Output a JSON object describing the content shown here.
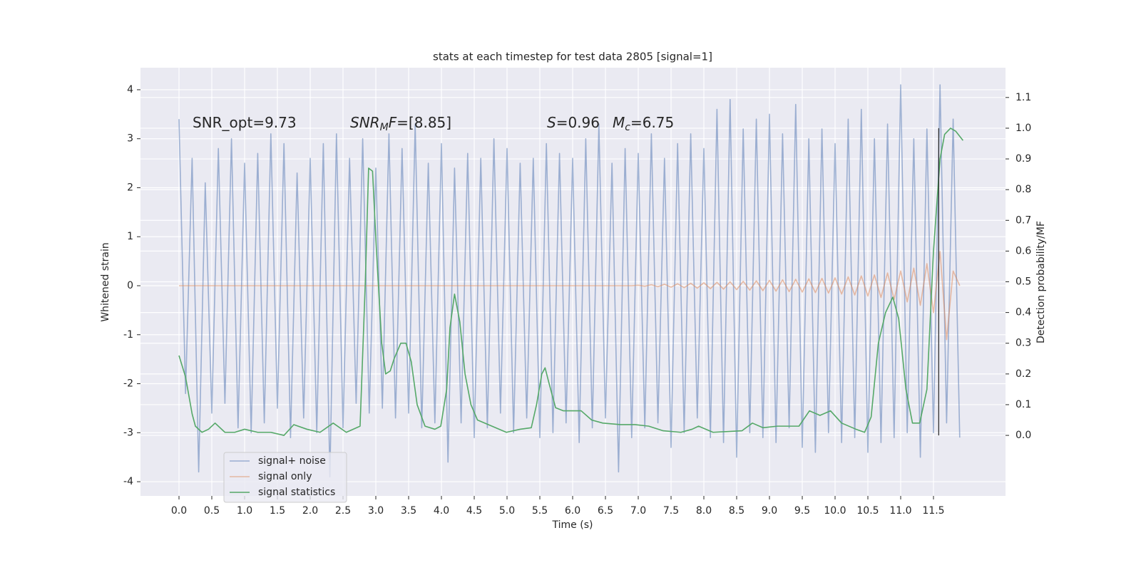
{
  "chart_data": {
    "type": "line",
    "title": "stats at each timestep for test data 2805 [signal=1]",
    "x_label": "Time (s)",
    "y_label": "Whitened strain",
    "y2_label": "Detection probability/MF",
    "xlim": [
      -0.587,
      12.598
    ],
    "ylim": [
      -4.29,
      4.45
    ],
    "y2lim": [
      -0.197,
      1.197
    ],
    "xticks": [
      {
        "value": 0,
        "label": "0.0"
      },
      0.5,
      {
        "value": 1,
        "label": "1.0"
      },
      1.5,
      {
        "value": 2,
        "label": "2.0"
      },
      2.5,
      {
        "value": 3,
        "label": "3.0"
      },
      3.5,
      {
        "value": 4,
        "label": "4.0"
      },
      4.5,
      {
        "value": 5,
        "label": "5.0"
      },
      5.5,
      {
        "value": 6,
        "label": "6.0"
      },
      6.5,
      {
        "value": 7,
        "label": "7.0"
      },
      7.5,
      {
        "value": 8,
        "label": "8.0"
      },
      8.5,
      {
        "value": 9,
        "label": "9.0"
      },
      9.5,
      {
        "value": 10,
        "label": "10.0"
      },
      10.5,
      {
        "value": 11,
        "label": "11.0"
      },
      11.5
    ],
    "yticks": [
      -4,
      -3,
      -2,
      -1,
      0,
      1,
      2,
      3,
      4
    ],
    "y2ticks": [
      {
        "value": 0,
        "label": "0.0"
      },
      0.1,
      0.2,
      0.3,
      0.4,
      0.5,
      0.6,
      0.7,
      0.8,
      0.9,
      {
        "value": 1,
        "label": "1.0"
      },
      1.1
    ],
    "grid": true,
    "legend": "lower left",
    "annotations": [
      {
        "parts": [
          {
            "text": "SNR_opt=9.73"
          }
        ]
      },
      {
        "parts": [
          {
            "text": "SNR",
            "style": "italic"
          },
          {
            "text": "M",
            "style": "italic sub"
          },
          {
            "text": "F",
            "style": "italic"
          },
          {
            "text": "=[8.85]"
          }
        ]
      },
      {
        "parts": [
          {
            "text": "S",
            "style": "italic"
          },
          {
            "text": "=0.96"
          }
        ]
      },
      {
        "parts": [
          {
            "text": "M",
            "style": "italic"
          },
          {
            "text": "c",
            "style": "italic sub"
          },
          {
            "text": "=6.75"
          }
        ]
      }
    ],
    "marker_line": {
      "x": 11.58,
      "ymin": 0,
      "ymax": 1,
      "color": "#222222",
      "axis": "y2"
    },
    "series": [
      {
        "name": "signal+ noise",
        "color": "#4c72b0",
        "opacity": 0.5,
        "x": [
          0,
          0.1,
          0.2,
          0.3,
          0.4,
          0.5,
          0.6,
          0.7,
          0.8,
          0.9,
          1,
          1.1,
          1.2,
          1.3,
          1.4,
          1.5,
          1.6,
          1.7,
          1.8,
          1.9,
          2,
          2.1,
          2.2,
          2.3,
          2.4,
          2.5,
          2.6,
          2.7,
          2.8,
          2.9,
          3,
          3.1,
          3.2,
          3.3,
          3.4,
          3.5,
          3.6,
          3.7,
          3.8,
          3.9,
          4,
          4.1,
          4.2,
          4.3,
          4.4,
          4.5,
          4.6,
          4.7,
          4.8,
          4.9,
          5,
          5.1,
          5.2,
          5.3,
          5.4,
          5.5,
          5.6,
          5.7,
          5.8,
          5.9,
          6,
          6.1,
          6.2,
          6.3,
          6.4,
          6.5,
          6.6,
          6.7,
          6.8,
          6.9,
          7,
          7.1,
          7.2,
          7.3,
          7.4,
          7.5,
          7.6,
          7.7,
          7.8,
          7.9,
          8,
          8.1,
          8.2,
          8.3,
          8.4,
          8.5,
          8.6,
          8.7,
          8.8,
          8.9,
          9,
          9.1,
          9.2,
          9.3,
          9.4,
          9.5,
          9.6,
          9.7,
          9.8,
          9.9,
          10,
          10.1,
          10.2,
          10.3,
          10.4,
          10.5,
          10.6,
          10.7,
          10.8,
          10.9,
          11,
          11.1,
          11.2,
          11.3,
          11.4,
          11.5,
          11.6,
          11.7,
          11.8,
          11.9
        ],
        "values": [
          3.4,
          -2.2,
          2.6,
          -3.8,
          2.1,
          -2.6,
          2.8,
          -2.4,
          3.0,
          -2.9,
          2.5,
          -3.0,
          2.7,
          -2.8,
          3.1,
          -2.5,
          2.9,
          -3.1,
          2.3,
          -2.7,
          2.6,
          -3.0,
          2.9,
          -3.9,
          3.1,
          -2.9,
          2.6,
          -2.4,
          3.0,
          -2.6,
          2.4,
          -2.5,
          3.1,
          -2.7,
          2.8,
          -2.6,
          3.3,
          -2.9,
          2.5,
          -2.8,
          2.9,
          -3.6,
          2.4,
          -2.8,
          2.7,
          -3.1,
          2.6,
          -2.9,
          3.0,
          -2.6,
          2.8,
          -3.0,
          2.5,
          -2.7,
          2.6,
          -3.1,
          2.9,
          -3.0,
          2.7,
          -2.8,
          2.6,
          -3.2,
          3.0,
          -2.9,
          3.3,
          -2.7,
          2.5,
          -3.8,
          2.8,
          -3.1,
          2.7,
          -2.9,
          3.1,
          -2.8,
          2.6,
          -3.3,
          2.9,
          -3.0,
          3.1,
          -2.7,
          2.8,
          -3.1,
          3.6,
          -3.2,
          3.8,
          -3.5,
          3.2,
          -3.0,
          3.4,
          -3.1,
          3.5,
          -3.2,
          3.1,
          -2.9,
          3.7,
          -3.3,
          3.0,
          -3.4,
          3.2,
          -3.0,
          2.9,
          -3.2,
          3.4,
          -3.1,
          3.6,
          -3.4,
          3.0,
          -3.2,
          3.3,
          -3.1,
          4.1,
          -3.0,
          3.0,
          -3.5,
          3.2,
          -3.0,
          4.1,
          -2.8,
          3.4,
          -3.1
        ]
      },
      {
        "name": "signal only",
        "color": "#dd8452",
        "opacity": 0.5,
        "x": [
          0,
          0.1,
          0.2,
          0.3,
          0.4,
          0.5,
          0.6,
          0.7,
          0.8,
          0.9,
          1,
          1.1,
          1.2,
          1.3,
          1.4,
          1.5,
          1.6,
          1.7,
          1.8,
          1.9,
          2,
          2.1,
          2.2,
          2.3,
          2.4,
          2.5,
          2.6,
          2.7,
          2.8,
          2.9,
          3,
          3.1,
          3.2,
          3.3,
          3.4,
          3.5,
          3.6,
          3.7,
          3.8,
          3.9,
          4,
          4.1,
          4.2,
          4.3,
          4.4,
          4.5,
          4.6,
          4.7,
          4.8,
          4.9,
          5,
          5.1,
          5.2,
          5.3,
          5.4,
          5.5,
          5.6,
          5.7,
          5.8,
          5.9,
          6,
          6.1,
          6.2,
          6.3,
          6.4,
          6.5,
          6.6,
          6.7,
          6.8,
          6.9,
          7,
          7.1,
          7.2,
          7.3,
          7.4,
          7.5,
          7.6,
          7.7,
          7.8,
          7.9,
          8,
          8.1,
          8.2,
          8.3,
          8.4,
          8.5,
          8.6,
          8.7,
          8.8,
          8.9,
          9,
          9.1,
          9.2,
          9.3,
          9.4,
          9.5,
          9.6,
          9.7,
          9.8,
          9.9,
          10,
          10.1,
          10.2,
          10.3,
          10.4,
          10.5,
          10.6,
          10.7,
          10.8,
          10.9,
          11,
          11.1,
          11.2,
          11.3,
          11.4,
          11.5,
          11.6,
          11.7,
          11.8,
          11.9
        ],
        "values": [
          0,
          0,
          0,
          0,
          0,
          0,
          0,
          0,
          0,
          0,
          0,
          0,
          0,
          0,
          0,
          0,
          0,
          0,
          0,
          0,
          0,
          0,
          0,
          0,
          0,
          0,
          0,
          0,
          0,
          0,
          0,
          0,
          0,
          0,
          0,
          0,
          0,
          0,
          0,
          0,
          0,
          0,
          0,
          0,
          0,
          0,
          0,
          0,
          0,
          0,
          0,
          0,
          0,
          0,
          0,
          0,
          0,
          0,
          0,
          0,
          0,
          0,
          0,
          0,
          0,
          0,
          0,
          0,
          0,
          0,
          0.01,
          -0.01,
          0.02,
          -0.02,
          0.03,
          -0.03,
          0.04,
          -0.04,
          0.05,
          -0.05,
          0.06,
          -0.06,
          0.07,
          -0.07,
          0.08,
          -0.08,
          0.09,
          -0.09,
          0.1,
          -0.1,
          0.11,
          -0.11,
          0.12,
          -0.12,
          0.13,
          -0.13,
          0.14,
          -0.14,
          0.15,
          -0.15,
          0.16,
          -0.17,
          0.18,
          -0.19,
          0.2,
          -0.21,
          0.22,
          -0.24,
          0.26,
          -0.28,
          0.3,
          -0.33,
          0.36,
          -0.4,
          0.45,
          -0.55,
          0.7,
          -1.1,
          0.3,
          0
        ]
      },
      {
        "name": "signal statistics",
        "color": "#55a868",
        "opacity": 1,
        "axis": "y2",
        "x": [
          0,
          0.1,
          0.2,
          0.25,
          0.35,
          0.45,
          0.55,
          0.7,
          0.85,
          1.0,
          1.2,
          1.4,
          1.6,
          1.75,
          1.95,
          2.15,
          2.35,
          2.55,
          2.76,
          2.84,
          2.89,
          2.95,
          3.01,
          3.09,
          3.15,
          3.22,
          3.28,
          3.38,
          3.46,
          3.54,
          3.63,
          3.75,
          3.9,
          3.99,
          4.08,
          4.13,
          4.2,
          4.28,
          4.36,
          4.45,
          4.55,
          4.77,
          4.99,
          5.2,
          5.37,
          5.45,
          5.53,
          5.58,
          5.64,
          5.74,
          5.86,
          6.13,
          6.29,
          6.46,
          6.73,
          6.95,
          7.16,
          7.38,
          7.65,
          7.82,
          7.92,
          8.14,
          8.58,
          8.74,
          8.9,
          9.12,
          9.45,
          9.61,
          9.77,
          9.93,
          10.1,
          10.32,
          10.45,
          10.55,
          10.66,
          10.77,
          10.88,
          10.97,
          11.08,
          11.18,
          11.29,
          11.4,
          11.5,
          11.6,
          11.67,
          11.76,
          11.84,
          11.95
        ],
        "values": [
          0.26,
          0.19,
          0.07,
          0.03,
          0.01,
          0.02,
          0.04,
          0.01,
          0.01,
          0.02,
          0.01,
          0.01,
          0.0,
          0.035,
          0.02,
          0.01,
          0.04,
          0.01,
          0.03,
          0.5,
          0.87,
          0.86,
          0.6,
          0.3,
          0.2,
          0.21,
          0.25,
          0.3,
          0.3,
          0.24,
          0.1,
          0.03,
          0.02,
          0.03,
          0.15,
          0.35,
          0.46,
          0.37,
          0.2,
          0.1,
          0.05,
          0.03,
          0.01,
          0.02,
          0.025,
          0.1,
          0.2,
          0.22,
          0.17,
          0.09,
          0.08,
          0.08,
          0.05,
          0.04,
          0.035,
          0.035,
          0.03,
          0.015,
          0.01,
          0.02,
          0.03,
          0.01,
          0.015,
          0.04,
          0.025,
          0.03,
          0.03,
          0.08,
          0.065,
          0.08,
          0.04,
          0.02,
          0.01,
          0.06,
          0.3,
          0.4,
          0.45,
          0.38,
          0.15,
          0.04,
          0.04,
          0.15,
          0.6,
          0.9,
          0.98,
          1.0,
          0.99,
          0.96
        ]
      }
    ]
  }
}
